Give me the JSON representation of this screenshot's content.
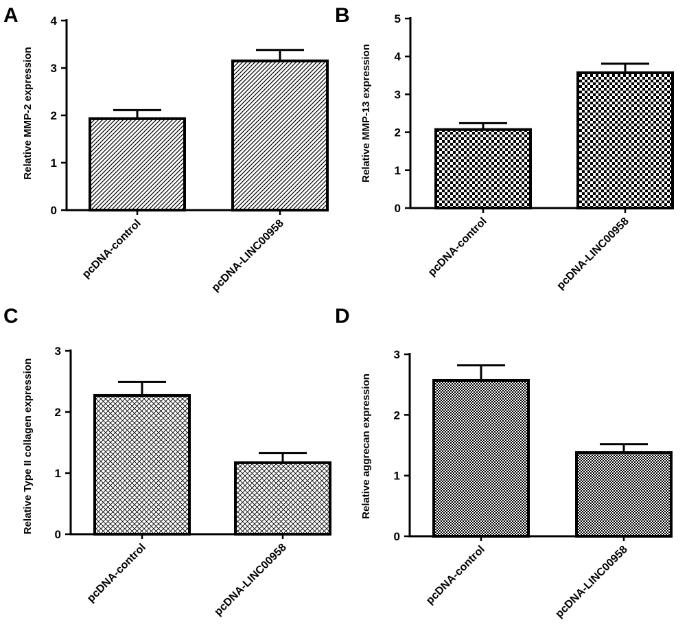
{
  "chart_data": [
    {
      "type": "bar",
      "panel": "A",
      "title": "",
      "xlabel": "",
      "ylabel": "Relative  MMP-2 expression",
      "ylim": [
        0,
        4
      ],
      "yticks": [
        0,
        1,
        2,
        3,
        4
      ],
      "categories": [
        "pcDNA-control",
        "pcDNA-LINC00958"
      ],
      "values": [
        1.93,
        3.15
      ],
      "errors": [
        0.18,
        0.23
      ],
      "pattern": "diagonal-hatch",
      "grid": false
    },
    {
      "type": "bar",
      "panel": "B",
      "title": "",
      "xlabel": "",
      "ylabel": "Relative  MMP-13 expression",
      "ylim": [
        0,
        5
      ],
      "yticks": [
        0,
        1,
        2,
        3,
        4,
        5
      ],
      "categories": [
        "pcDNA-control",
        "pcDNA-LINC00958"
      ],
      "values": [
        2.07,
        3.57
      ],
      "errors": [
        0.17,
        0.24
      ],
      "pattern": "checkerboard",
      "grid": false
    },
    {
      "type": "bar",
      "panel": "C",
      "title": "",
      "xlabel": "",
      "ylabel": "Relative Type II collagen  expression",
      "ylim": [
        0,
        3
      ],
      "yticks": [
        0,
        1,
        2,
        3
      ],
      "categories": [
        "pcDNA-control",
        "pcDNA-LINC00958"
      ],
      "values": [
        2.27,
        1.17
      ],
      "errors": [
        0.22,
        0.16
      ],
      "pattern": "cross-hatch",
      "grid": false
    },
    {
      "type": "bar",
      "panel": "D",
      "title": "",
      "xlabel": "",
      "ylabel": "Relative aggrecan expression",
      "ylim": [
        0,
        3
      ],
      "yticks": [
        0,
        1,
        2,
        3
      ],
      "categories": [
        "pcDNA-control",
        "pcDNA-LINC00958"
      ],
      "values": [
        2.57,
        1.38
      ],
      "errors": [
        0.25,
        0.14
      ],
      "pattern": "fine-checker",
      "grid": false
    }
  ],
  "colors": {
    "stroke": "#000000",
    "fill": "#ffffff"
  }
}
